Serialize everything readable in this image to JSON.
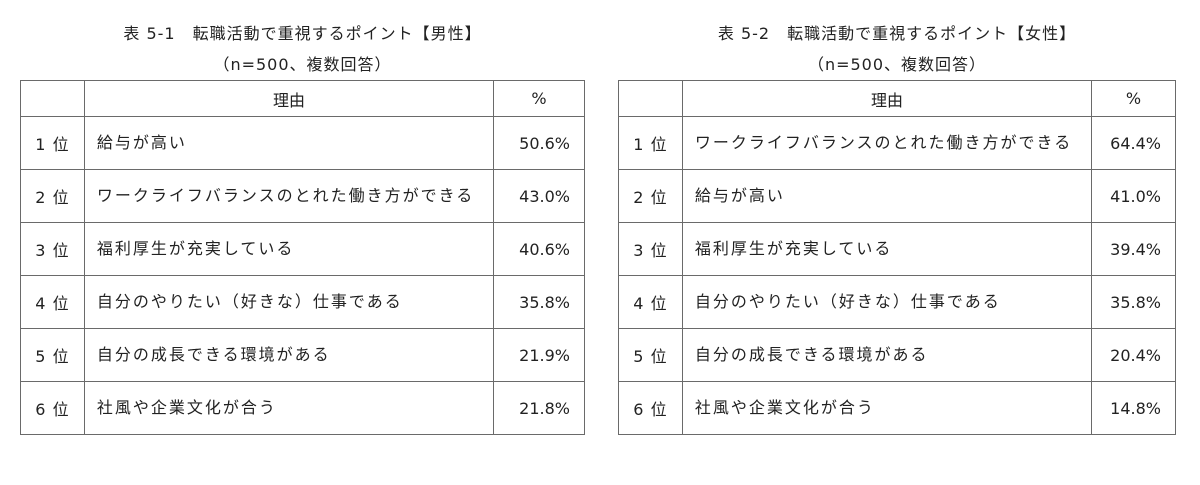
{
  "tables": [
    {
      "title": "表 5-1　転職活動で重視するポイント【男性】",
      "subtitle": "（n=500、複数回答）",
      "header": {
        "rank": "",
        "reason": "理由",
        "pct": "%"
      },
      "rows": [
        {
          "rank": "1 位",
          "reason": "給与が高い",
          "pct": "50.6%"
        },
        {
          "rank": "2 位",
          "reason": "ワークライフバランスのとれた働き方ができる",
          "pct": "43.0%"
        },
        {
          "rank": "3 位",
          "reason": "福利厚生が充実している",
          "pct": "40.6%"
        },
        {
          "rank": "4 位",
          "reason": "自分のやりたい（好きな）仕事である",
          "pct": "35.8%"
        },
        {
          "rank": "5 位",
          "reason": "自分の成長できる環境がある",
          "pct": "21.9%"
        },
        {
          "rank": "6 位",
          "reason": "社風や企業文化が合う",
          "pct": "21.8%"
        }
      ]
    },
    {
      "title": "表 5-2　転職活動で重視するポイント【女性】",
      "subtitle": "（n=500、複数回答）",
      "header": {
        "rank": "",
        "reason": "理由",
        "pct": "%"
      },
      "rows": [
        {
          "rank": "1 位",
          "reason": "ワークライフバランスのとれた働き方ができる",
          "pct": "64.4%"
        },
        {
          "rank": "2 位",
          "reason": "給与が高い",
          "pct": "41.0%"
        },
        {
          "rank": "3 位",
          "reason": "福利厚生が充実している",
          "pct": "39.4%"
        },
        {
          "rank": "4 位",
          "reason": "自分のやりたい（好きな）仕事である",
          "pct": "35.8%"
        },
        {
          "rank": "5 位",
          "reason": "自分の成長できる環境がある",
          "pct": "20.4%"
        },
        {
          "rank": "6 位",
          "reason": "社風や企業文化が合う",
          "pct": "14.8%"
        }
      ]
    }
  ]
}
